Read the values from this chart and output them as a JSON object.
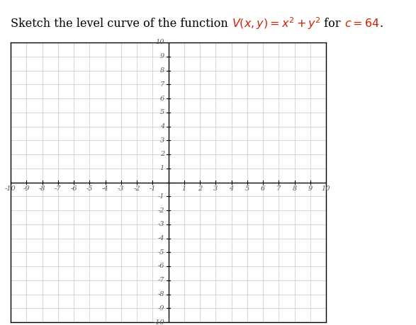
{
  "title_plain": "Sketch the level curve of the function ",
  "title_math": "V(x, y) = x^2 + y^2",
  "title_for": " for ",
  "title_c": "c = 64",
  "title_dot": ".",
  "title_fontsize": 11.5,
  "math_color": "#cc2200",
  "text_color": "#000000",
  "xmin": -10,
  "xmax": 10,
  "ymin": -10,
  "ymax": 10,
  "grid_color": "#c8c8c8",
  "grid_linewidth": 0.5,
  "axis_color": "#000000",
  "tick_color": "#555555",
  "tick_fontsize": 7,
  "background_color": "#ffffff",
  "border_color": "#000000",
  "fig_width": 5.87,
  "fig_height": 4.59,
  "dpi": 100
}
